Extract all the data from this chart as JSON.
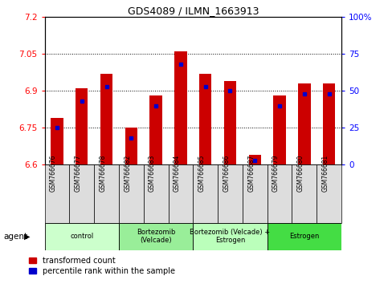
{
  "title": "GDS4089 / ILMN_1663913",
  "samples": [
    "GSM766676",
    "GSM766677",
    "GSM766678",
    "GSM766682",
    "GSM766683",
    "GSM766684",
    "GSM766685",
    "GSM766686",
    "GSM766687",
    "GSM766679",
    "GSM766680",
    "GSM766681"
  ],
  "transformed_counts": [
    6.79,
    6.91,
    6.97,
    6.75,
    6.88,
    7.06,
    6.97,
    6.94,
    6.64,
    6.88,
    6.93,
    6.93
  ],
  "percentile_ranks": [
    25,
    43,
    53,
    18,
    40,
    68,
    53,
    50,
    3,
    40,
    48,
    48
  ],
  "bar_color": "#cc0000",
  "marker_color": "#0000cc",
  "ymin": 6.6,
  "ymax": 7.2,
  "yticks_left": [
    6.6,
    6.75,
    6.9,
    7.05,
    7.2
  ],
  "yticks_right": [
    0,
    25,
    50,
    75,
    100
  ],
  "groups": [
    {
      "label": "control",
      "start": 0,
      "end": 3,
      "color": "#ccffcc"
    },
    {
      "label": "Bortezomib\n(Velcade)",
      "start": 3,
      "end": 6,
      "color": "#99ee99"
    },
    {
      "label": "Bortezomib (Velcade) +\nEstrogen",
      "start": 6,
      "end": 9,
      "color": "#bbffbb"
    },
    {
      "label": "Estrogen",
      "start": 9,
      "end": 12,
      "color": "#44dd44"
    }
  ],
  "agent_label": "agent",
  "legend_transformed": "transformed count",
  "legend_percentile": "percentile rank within the sample",
  "bar_width": 0.5,
  "figsize": [
    4.83,
    3.54
  ],
  "dpi": 100
}
